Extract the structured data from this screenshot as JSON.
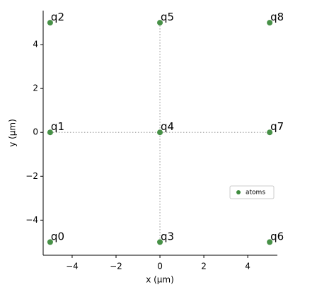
{
  "chart_data": {
    "type": "scatter",
    "xlabel": "x (μm)",
    "ylabel": "y (μm)",
    "xlim": [
      -5.32,
      5.35
    ],
    "ylim": [
      -5.6,
      5.55
    ],
    "xticks": [
      {
        "value": -4,
        "label": "−4"
      },
      {
        "value": -2,
        "label": "−2"
      },
      0,
      2,
      4
    ],
    "yticks": [
      {
        "value": -4,
        "label": "−4"
      },
      {
        "value": -2,
        "label": "−2"
      },
      0,
      2,
      4
    ],
    "legend": "lower right",
    "dotted_lines": [
      {
        "x": [
          -5,
          5
        ],
        "y": [
          0,
          0
        ]
      },
      {
        "x": [
          0,
          0
        ],
        "y": [
          5,
          -5
        ]
      }
    ],
    "series": [
      {
        "name": "atoms",
        "color": "#3d8b3d",
        "x": [
          -5,
          -5,
          -5,
          0,
          0,
          0,
          5,
          5,
          5
        ],
        "values": [
          -5,
          0,
          5,
          -5,
          0,
          5,
          -5,
          0,
          5
        ],
        "labels": [
          "q0",
          "q1",
          "q2",
          "q3",
          "q4",
          "q5",
          "q6",
          "q7",
          "q8"
        ]
      }
    ]
  }
}
